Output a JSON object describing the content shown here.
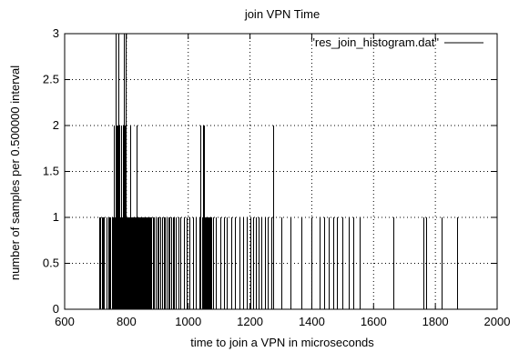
{
  "chart_data": {
    "type": "bar",
    "title": "join VPN Time",
    "xlabel": "time to join a VPN in microseconds",
    "ylabel": "number of samples per 0.500000 interval",
    "xlim": [
      600,
      2000
    ],
    "ylim": [
      0,
      3
    ],
    "xticks": [
      600,
      800,
      1000,
      1200,
      1400,
      1600,
      1800,
      2000
    ],
    "yticks": [
      0,
      0.5,
      1,
      1.5,
      2,
      2.5,
      3
    ],
    "xtick_labels": [
      "600",
      "800",
      "1000",
      "1200",
      "1400",
      "1600",
      "1800",
      "2000"
    ],
    "ytick_labels": [
      "0",
      "0.5",
      "1",
      "1.5",
      "2",
      "2.5",
      "3"
    ],
    "grid": true,
    "legend_position": "top-right",
    "series": [
      {
        "name": "\"res_join_histogram.dat\"",
        "style": "impulses",
        "color": "#000000",
        "x": [
          712,
          716,
          720,
          724,
          728,
          735,
          740,
          745,
          748,
          752,
          755,
          758,
          760,
          762,
          764,
          765,
          766,
          768,
          770,
          771,
          772,
          774,
          775,
          776,
          778,
          780,
          782,
          784,
          786,
          788,
          790,
          792,
          794,
          795,
          796,
          798,
          800,
          802,
          804,
          806,
          808,
          810,
          812,
          814,
          816,
          818,
          820,
          822,
          824,
          826,
          828,
          830,
          832,
          834,
          836,
          838,
          840,
          842,
          845,
          848,
          850,
          852,
          855,
          858,
          860,
          862,
          865,
          868,
          870,
          872,
          875,
          878,
          880,
          885,
          890,
          895,
          900,
          905,
          910,
          915,
          920,
          925,
          930,
          935,
          940,
          945,
          950,
          955,
          960,
          968,
          975,
          985,
          995,
          1005,
          1015,
          1025,
          1035,
          1040,
          1044,
          1048,
          1050,
          1052,
          1055,
          1058,
          1060,
          1062,
          1064,
          1066,
          1068,
          1070,
          1072,
          1075,
          1080,
          1090,
          1105,
          1115,
          1125,
          1140,
          1150,
          1165,
          1178,
          1190,
          1200,
          1210,
          1218,
          1228,
          1238,
          1248,
          1258,
          1268,
          1275,
          1300,
          1330,
          1365,
          1400,
          1425,
          1440,
          1455,
          1470,
          1480,
          1500,
          1520,
          1535,
          1555,
          1665,
          1760,
          1770,
          1820,
          1870
        ],
        "values": [
          1,
          1,
          1,
          1,
          1,
          1,
          1,
          1,
          1,
          1,
          1,
          1,
          2,
          1,
          2,
          1,
          3,
          2,
          1,
          2,
          1,
          2,
          3,
          1,
          2,
          1,
          2,
          1,
          1,
          2,
          1,
          3,
          2,
          1,
          3,
          1,
          1,
          1,
          1,
          1,
          1,
          1,
          2,
          1,
          1,
          1,
          1,
          1,
          1,
          1,
          1,
          1,
          1,
          2,
          1,
          1,
          1,
          1,
          1,
          1,
          1,
          1,
          1,
          1,
          1,
          1,
          1,
          1,
          1,
          1,
          1,
          1,
          1,
          1,
          1,
          1,
          1,
          1,
          1,
          1,
          1,
          1,
          1,
          1,
          1,
          1,
          1,
          1,
          1,
          1,
          1,
          1,
          1,
          1,
          1,
          1,
          1,
          2,
          1,
          2,
          1,
          2,
          1,
          1,
          1,
          1,
          1,
          1,
          1,
          1,
          1,
          1,
          1,
          1,
          1,
          1,
          1,
          1,
          1,
          1,
          1,
          1,
          1,
          1,
          1,
          1,
          1,
          1,
          1,
          1,
          2,
          1,
          1,
          1,
          1,
          1,
          1,
          1,
          1,
          1,
          1,
          1,
          1,
          1,
          1,
          1,
          1,
          1,
          1
        ]
      }
    ]
  }
}
